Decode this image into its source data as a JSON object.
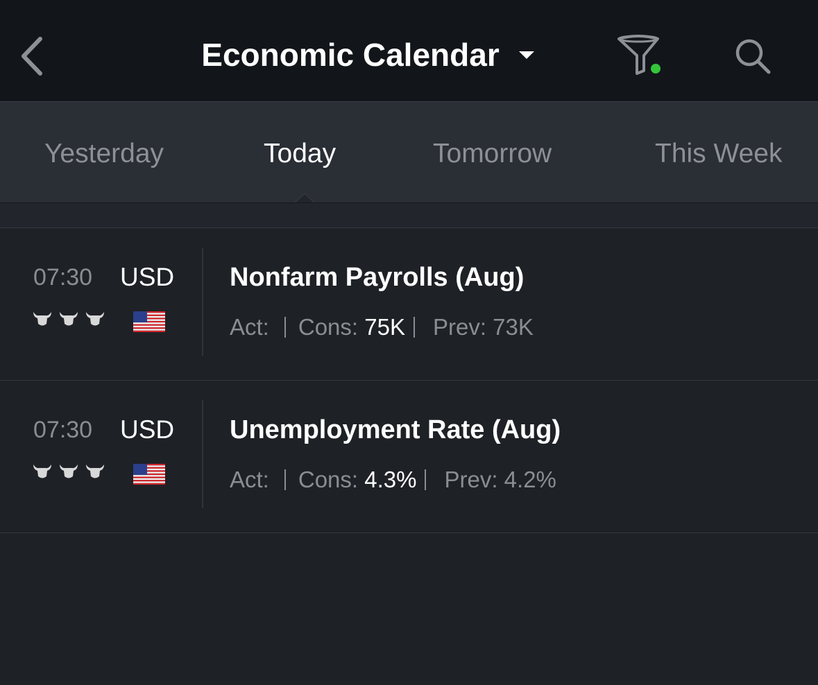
{
  "header": {
    "title": "Economic Calendar"
  },
  "tabs": [
    "Yesterday",
    "Today",
    "Tomorrow",
    "This Week"
  ],
  "selected_tab": 1,
  "events": [
    {
      "time": "07:30",
      "currency": "USD",
      "importance": 3,
      "title": "Nonfarm Payrolls (Aug)",
      "actual_label": "Act:",
      "consensus_label": "Cons:",
      "consensus": "75K",
      "previous_label": "Prev:",
      "previous": "73K"
    },
    {
      "time": "07:30",
      "currency": "USD",
      "importance": 3,
      "title": "Unemployment Rate (Aug)",
      "actual_label": "Act:",
      "consensus_label": "Cons:",
      "consensus": "4.3%",
      "previous_label": "Prev:",
      "previous": "4.2%"
    }
  ]
}
